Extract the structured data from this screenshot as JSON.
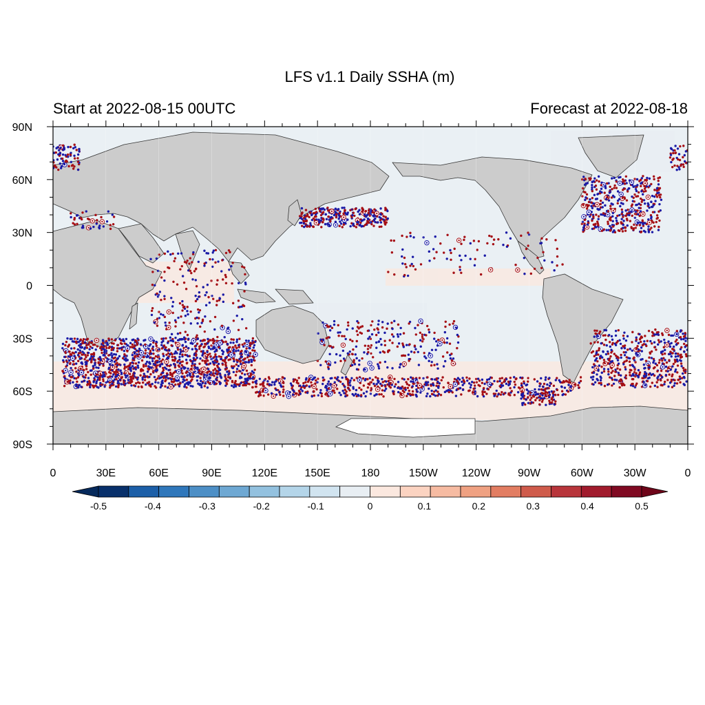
{
  "title": "LFS v1.1 Daily SSHA (m)",
  "left_subtitle": "Start at 2022-08-15 00UTC",
  "right_subtitle": "Forecast at 2022-08-18",
  "map": {
    "projection": "cylindrical-equidistant",
    "lon_range": [
      0,
      360
    ],
    "lat_range": [
      -90,
      90
    ],
    "lat_labels": [
      {
        "lat": 90,
        "text": "90N"
      },
      {
        "lat": 60,
        "text": "60N"
      },
      {
        "lat": 30,
        "text": "30N"
      },
      {
        "lat": 0,
        "text": "0"
      },
      {
        "lat": -30,
        "text": "30S"
      },
      {
        "lat": -60,
        "text": "60S"
      },
      {
        "lat": -90,
        "text": "90S"
      }
    ],
    "lon_labels": [
      {
        "lon": 0,
        "text": "0"
      },
      {
        "lon": 30,
        "text": "30E"
      },
      {
        "lon": 60,
        "text": "60E"
      },
      {
        "lon": 90,
        "text": "90E"
      },
      {
        "lon": 120,
        "text": "120E"
      },
      {
        "lon": 150,
        "text": "150E"
      },
      {
        "lon": 180,
        "text": "180"
      },
      {
        "lon": 210,
        "text": "150W"
      },
      {
        "lon": 240,
        "text": "120W"
      },
      {
        "lon": 270,
        "text": "90W"
      },
      {
        "lon": 300,
        "text": "60W"
      },
      {
        "lon": 330,
        "text": "30W"
      },
      {
        "lon": 360,
        "text": "0"
      }
    ],
    "land_color": "#cccccc",
    "ice_color": "#ffffff",
    "ocean_color": "#eaf0f4"
  },
  "colorbar": {
    "colors": [
      "#08306b",
      "#1c5fa8",
      "#2f77bb",
      "#4d8fc6",
      "#6ea8d3",
      "#93c1df",
      "#b4d5e9",
      "#d1e4f0",
      "#e8eef3",
      "#fbe8df",
      "#fbd3c1",
      "#f6bba2",
      "#efa182",
      "#e27d62",
      "#cf5b4b",
      "#b8353b",
      "#a11b2d",
      "#800a22"
    ],
    "labels": [
      {
        "value": -0.5,
        "text": "-0.5"
      },
      {
        "value": -0.4,
        "text": "-0.4"
      },
      {
        "value": -0.3,
        "text": "-0.3"
      },
      {
        "value": -0.2,
        "text": "-0.2"
      },
      {
        "value": -0.1,
        "text": "-0.1"
      },
      {
        "value": 0,
        "text": "0"
      },
      {
        "value": 0.1,
        "text": "0.1"
      },
      {
        "value": 0.2,
        "text": "0.2"
      },
      {
        "value": 0.3,
        "text": "0.3"
      },
      {
        "value": 0.4,
        "text": "0.4"
      },
      {
        "value": 0.5,
        "text": "0.5"
      }
    ]
  },
  "observation_clusters": [
    {
      "lon": [
        5,
        115
      ],
      "lat": [
        -58,
        -30
      ],
      "n": 1400
    },
    {
      "lon": [
        115,
        300
      ],
      "lat": [
        -63,
        -52
      ],
      "n": 650
    },
    {
      "lon": [
        150,
        230
      ],
      "lat": [
        -48,
        -20
      ],
      "n": 250
    },
    {
      "lon": [
        140,
        190
      ],
      "lat": [
        33,
        44
      ],
      "n": 300
    },
    {
      "lon": [
        300,
        345
      ],
      "lat": [
        30,
        62
      ],
      "n": 450
    },
    {
      "lon": [
        305,
        360
      ],
      "lat": [
        -58,
        -25
      ],
      "n": 500
    },
    {
      "lon": [
        55,
        110
      ],
      "lat": [
        -30,
        20
      ],
      "n": 200
    },
    {
      "lon": [
        190,
        290
      ],
      "lat": [
        5,
        30
      ],
      "n": 100
    },
    {
      "lon": [
        0,
        15
      ],
      "lat": [
        65,
        80
      ],
      "n": 80
    },
    {
      "lon": [
        350,
        360
      ],
      "lat": [
        65,
        80
      ],
      "n": 40
    },
    {
      "lon": [
        265,
        285
      ],
      "lat": [
        -68,
        -60
      ],
      "n": 80
    },
    {
      "lon": [
        10,
        35
      ],
      "lat": [
        32,
        42
      ],
      "n": 40
    }
  ]
}
